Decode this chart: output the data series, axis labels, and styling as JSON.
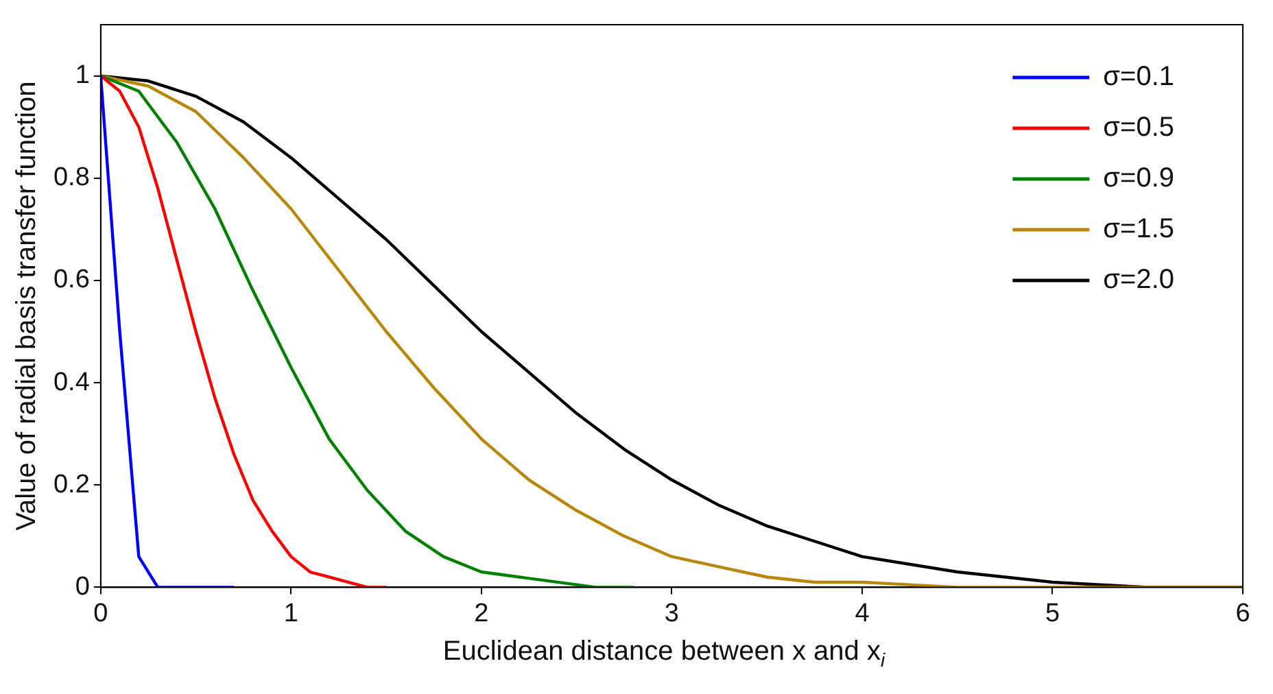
{
  "chart_data": {
    "type": "line",
    "xlabel": "Euclidean distance between x and x$_{i}$",
    "ylabel": "Value of radial basis transfer function",
    "xlim": [
      0,
      6
    ],
    "xticks": [
      0,
      1,
      2,
      3,
      4,
      5,
      6
    ],
    "ylim": [
      0,
      1.1
    ],
    "yticks": [
      0,
      0.2,
      0.4,
      0.6,
      0.8,
      1
    ],
    "grid": false,
    "legend": "top right",
    "marker": "none",
    "line_style": "solid",
    "series": [
      {
        "name": "σ=0.1",
        "color": "#0000ff",
        "x": [
          0,
          0.1,
          0.2,
          0.3,
          0.7
        ],
        "values": [
          1,
          0.5,
          0.06,
          0,
          0
        ]
      },
      {
        "name": "σ=0.5",
        "color": "#ff0000",
        "x": [
          0,
          0.1,
          0.2,
          0.3,
          0.4,
          0.5,
          0.6,
          0.7,
          0.8,
          0.9,
          1.0,
          1.1,
          1.2,
          1.3,
          1.4,
          1.5
        ],
        "values": [
          1,
          0.97,
          0.9,
          0.78,
          0.64,
          0.5,
          0.37,
          0.26,
          0.17,
          0.11,
          0.06,
          0.03,
          0.02,
          0.01,
          0,
          0
        ]
      },
      {
        "name": "σ=0.9",
        "color": "#008000",
        "x": [
          0,
          0.2,
          0.4,
          0.6,
          0.8,
          1.0,
          1.2,
          1.4,
          1.6,
          1.8,
          2.0,
          2.2,
          2.4,
          2.6,
          2.8
        ],
        "values": [
          1,
          0.97,
          0.87,
          0.74,
          0.58,
          0.43,
          0.29,
          0.19,
          0.11,
          0.06,
          0.03,
          0.02,
          0.01,
          0,
          0
        ]
      },
      {
        "name": "σ=1.5",
        "color": "#b8860b",
        "x": [
          0,
          0.25,
          0.5,
          0.75,
          1.0,
          1.25,
          1.5,
          1.75,
          2.0,
          2.25,
          2.5,
          2.75,
          3.0,
          3.25,
          3.5,
          3.75,
          4.0,
          4.5,
          5,
          6
        ],
        "values": [
          1,
          0.98,
          0.93,
          0.84,
          0.74,
          0.62,
          0.5,
          0.39,
          0.29,
          0.21,
          0.15,
          0.1,
          0.06,
          0.04,
          0.02,
          0.01,
          0.01,
          0,
          0,
          0
        ]
      },
      {
        "name": "σ=2.0",
        "color": "#000000",
        "x": [
          0,
          0.25,
          0.5,
          0.75,
          1,
          1.25,
          1.5,
          1.75,
          2,
          2.25,
          2.5,
          2.75,
          3,
          3.25,
          3.5,
          3.75,
          4,
          4.5,
          5,
          5.5,
          6
        ],
        "values": [
          1,
          0.99,
          0.96,
          0.91,
          0.84,
          0.76,
          0.68,
          0.59,
          0.5,
          0.42,
          0.34,
          0.27,
          0.21,
          0.16,
          0.12,
          0.09,
          0.06,
          0.03,
          0.01,
          0,
          0
        ]
      }
    ]
  }
}
